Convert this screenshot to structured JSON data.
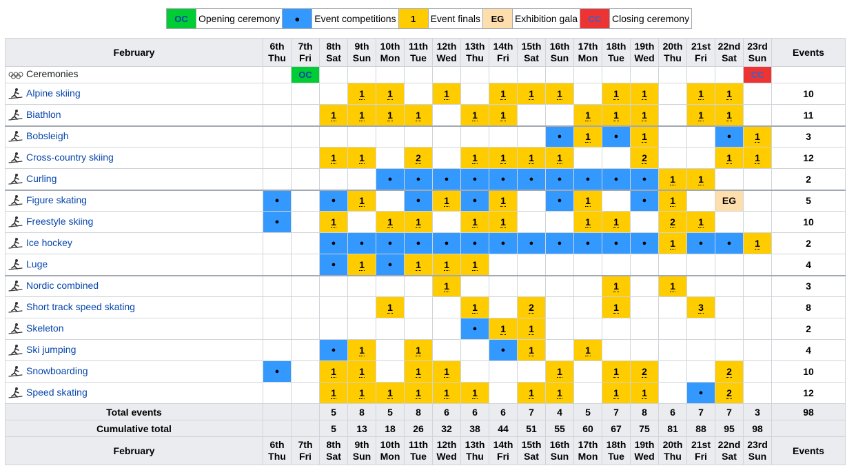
{
  "legend": [
    {
      "code": "OC",
      "label": "Opening ceremony",
      "cls": "c-oc"
    },
    {
      "code": "●",
      "label": "Event competitions",
      "cls": "c-ev"
    },
    {
      "code": "1",
      "label": "Event finals",
      "cls": "c-fi"
    },
    {
      "code": "EG",
      "label": "Exhibition gala",
      "cls": "c-eg"
    },
    {
      "code": "CC",
      "label": "Closing ceremony",
      "cls": "c-cc"
    }
  ],
  "header": {
    "month": "February",
    "events_label": "Events",
    "days": [
      {
        "d": "6th",
        "w": "Thu"
      },
      {
        "d": "7th",
        "w": "Fri"
      },
      {
        "d": "8th",
        "w": "Sat"
      },
      {
        "d": "9th",
        "w": "Sun"
      },
      {
        "d": "10th",
        "w": "Mon"
      },
      {
        "d": "11th",
        "w": "Tue"
      },
      {
        "d": "12th",
        "w": "Wed"
      },
      {
        "d": "13th",
        "w": "Thu"
      },
      {
        "d": "14th",
        "w": "Fri"
      },
      {
        "d": "15th",
        "w": "Sat"
      },
      {
        "d": "16th",
        "w": "Sun"
      },
      {
        "d": "17th",
        "w": "Mon"
      },
      {
        "d": "18th",
        "w": "Tue"
      },
      {
        "d": "19th",
        "w": "Wed"
      },
      {
        "d": "20th",
        "w": "Thu"
      },
      {
        "d": "21st",
        "w": "Fri"
      },
      {
        "d": "22nd",
        "w": "Sat"
      },
      {
        "d": "23rd",
        "w": "Sun"
      }
    ]
  },
  "sports": [
    {
      "name": "Ceremonies",
      "icon": "olympic-rings-icon",
      "link": false,
      "cells": [
        "",
        "OC",
        "",
        "",
        "",
        "",
        "",
        "",
        "",
        "",
        "",
        "",
        "",
        "",
        "",
        "",
        "",
        "CC"
      ],
      "total": ""
    },
    {
      "name": "Alpine skiing",
      "icon": "alpine-skiing-icon",
      "link": true,
      "cells": [
        "",
        "",
        "",
        "1",
        "1",
        "",
        "1",
        "",
        "1",
        "1",
        "1",
        "",
        "1",
        "1",
        "",
        "1",
        "1",
        ""
      ],
      "total": "10"
    },
    {
      "name": "Biathlon",
      "icon": "biathlon-icon",
      "link": true,
      "cells": [
        "",
        "",
        "1",
        "1",
        "1",
        "1",
        "",
        "1",
        "1",
        "",
        "",
        "1",
        "1",
        "1",
        "",
        "1",
        "1",
        ""
      ],
      "total": "11"
    },
    {
      "name": "Bobsleigh",
      "icon": "bobsleigh-icon",
      "link": true,
      "sep": true,
      "cells": [
        "",
        "",
        "",
        "",
        "",
        "",
        "",
        "",
        "",
        "",
        "●",
        "1",
        "●",
        "1",
        "",
        "",
        "●",
        "1"
      ],
      "total": "3"
    },
    {
      "name": "Cross-country skiing",
      "icon": "cross-country-skiing-icon",
      "link": true,
      "cells": [
        "",
        "",
        "1",
        "1",
        "",
        "2",
        "",
        "1",
        "1",
        "1",
        "1",
        "",
        "",
        "2",
        "",
        "",
        "1",
        "1"
      ],
      "total": "12"
    },
    {
      "name": "Curling",
      "icon": "curling-icon",
      "link": true,
      "cells": [
        "",
        "",
        "",
        "",
        "●",
        "●",
        "●",
        "●",
        "●",
        "●",
        "●",
        "●",
        "●",
        "●",
        "1",
        "1",
        "",
        ""
      ],
      "total": "2"
    },
    {
      "name": "Figure skating",
      "icon": "figure-skating-icon",
      "link": true,
      "sep": true,
      "cells": [
        "●",
        "",
        "●",
        "1",
        "",
        "●",
        "1",
        "●",
        "1",
        "",
        "●",
        "1",
        "",
        "●",
        "1",
        "",
        "EG",
        ""
      ],
      "total": "5"
    },
    {
      "name": "Freestyle skiing",
      "icon": "freestyle-skiing-icon",
      "link": true,
      "cells": [
        "●",
        "",
        "1",
        "",
        "1",
        "1",
        "",
        "1",
        "1",
        "",
        "",
        "1",
        "1",
        "",
        "2",
        "1",
        "",
        ""
      ],
      "total": "10"
    },
    {
      "name": "Ice hockey",
      "icon": "ice-hockey-icon",
      "link": true,
      "cells": [
        "",
        "",
        "●",
        "●",
        "●",
        "●",
        "●",
        "●",
        "●",
        "●",
        "●",
        "●",
        "●",
        "●",
        "1",
        "●",
        "●",
        "1"
      ],
      "total": "2"
    },
    {
      "name": "Luge",
      "icon": "luge-icon",
      "link": true,
      "cells": [
        "",
        "",
        "●",
        "1",
        "●",
        "1",
        "1",
        "1",
        "",
        "",
        "",
        "",
        "",
        "",
        "",
        "",
        "",
        ""
      ],
      "total": "4"
    },
    {
      "name": "Nordic combined",
      "icon": "nordic-combined-icon",
      "link": true,
      "sep": true,
      "cells": [
        "",
        "",
        "",
        "",
        "",
        "",
        "1",
        "",
        "",
        "",
        "",
        "",
        "1",
        "",
        "1",
        "",
        "",
        ""
      ],
      "total": "3"
    },
    {
      "name": "Short track speed skating",
      "icon": "short-track-icon",
      "link": true,
      "cells": [
        "",
        "",
        "",
        "",
        "1",
        "",
        "",
        "1",
        "",
        "2",
        "",
        "",
        "1",
        "",
        "",
        "3",
        "",
        ""
      ],
      "total": "8"
    },
    {
      "name": "Skeleton",
      "icon": "skeleton-icon",
      "link": true,
      "cells": [
        "",
        "",
        "",
        "",
        "",
        "",
        "",
        "●",
        "1",
        "1",
        "",
        "",
        "",
        "",
        "",
        "",
        "",
        ""
      ],
      "total": "2"
    },
    {
      "name": "Ski jumping",
      "icon": "ski-jumping-icon",
      "link": true,
      "cells": [
        "",
        "",
        "●",
        "1",
        "",
        "1",
        "",
        "",
        "●",
        "1",
        "",
        "1",
        "",
        "",
        "",
        "",
        "",
        ""
      ],
      "total": "4"
    },
    {
      "name": "Snowboarding",
      "icon": "snowboarding-icon",
      "link": true,
      "cells": [
        "●",
        "",
        "1",
        "1",
        "",
        "1",
        "1",
        "",
        "",
        "",
        "1",
        "",
        "1",
        "2",
        "",
        "",
        "2",
        ""
      ],
      "total": "10"
    },
    {
      "name": "Speed skating",
      "icon": "speed-skating-icon",
      "link": true,
      "cells": [
        "",
        "",
        "1",
        "1",
        "1",
        "1",
        "1",
        "1",
        "",
        "1",
        "1",
        "",
        "1",
        "1",
        "",
        "●",
        "2",
        ""
      ],
      "total": "12"
    }
  ],
  "totals": {
    "label": "Total events",
    "values": [
      "",
      "",
      "5",
      "8",
      "5",
      "8",
      "6",
      "6",
      "6",
      "7",
      "4",
      "5",
      "7",
      "8",
      "6",
      "7",
      "7",
      "3"
    ],
    "total": "98"
  },
  "cumulative": {
    "label": "Cumulative total",
    "values": [
      "",
      "",
      "5",
      "13",
      "18",
      "26",
      "32",
      "38",
      "44",
      "51",
      "55",
      "60",
      "67",
      "75",
      "81",
      "88",
      "95",
      "98"
    ]
  }
}
